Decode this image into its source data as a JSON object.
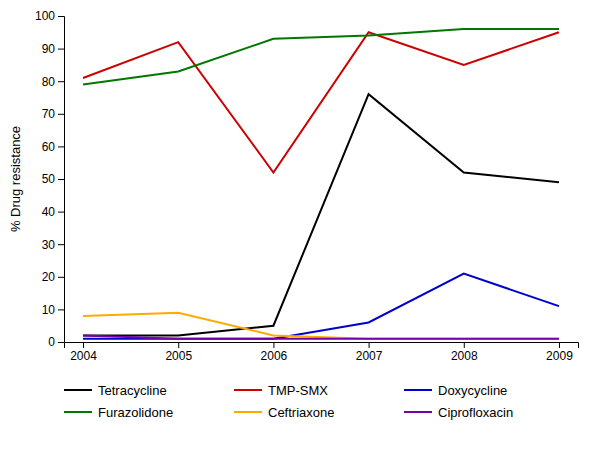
{
  "chart_data": {
    "type": "line",
    "ylabel": "% Drug resistance",
    "x": [
      2004,
      2005,
      2006,
      2007,
      2008,
      2009
    ],
    "series": [
      {
        "name": "Tetracycline",
        "color": "#000000",
        "values": [
          2,
          2,
          5,
          76,
          52,
          49
        ]
      },
      {
        "name": "TMP-SMX",
        "color": "#cc0000",
        "values": [
          81,
          92,
          52,
          95,
          85,
          95
        ]
      },
      {
        "name": "Doxycycline",
        "color": "#0000cc",
        "values": [
          1,
          1,
          1,
          6,
          21,
          11
        ]
      },
      {
        "name": "Furazolidone",
        "color": "#007700",
        "values": [
          79,
          83,
          93,
          94,
          96,
          96
        ]
      },
      {
        "name": "Ceftriaxone",
        "color": "#ffaa00",
        "values": [
          8,
          9,
          2,
          1,
          1,
          1
        ]
      },
      {
        "name": "Ciprofloxacin",
        "color": "#7700aa",
        "values": [
          2,
          1,
          1,
          1,
          1,
          1
        ]
      }
    ],
    "xlim": [
      2003.8,
      2009.2
    ],
    "xticks": [
      2004,
      2005,
      2006,
      2007,
      2008,
      2009
    ],
    "ylim": [
      0,
      100
    ],
    "yticks": [
      0,
      10,
      20,
      30,
      40,
      50,
      60,
      70,
      80,
      90,
      100
    ],
    "grid": false,
    "legend": "bottom"
  }
}
